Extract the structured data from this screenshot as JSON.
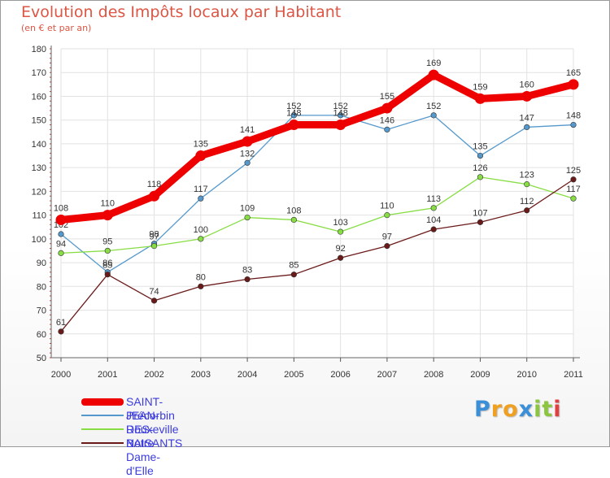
{
  "title": "Evolution des Impôts locaux par Habitant",
  "subtitle": "(en € et par an)",
  "brand": "Proxiti",
  "brand_letters": [
    {
      "ch": "P",
      "color": "#3a8fd8"
    },
    {
      "ch": "r",
      "color": "#f0a020"
    },
    {
      "ch": "o",
      "color": "#f0a020"
    },
    {
      "ch": "x",
      "color": "#3a8fd8"
    },
    {
      "ch": "i",
      "color": "#8cc63f"
    },
    {
      "ch": "t",
      "color": "#8cc63f"
    },
    {
      "ch": "i",
      "color": "#e04040"
    }
  ],
  "chart_data": {
    "type": "line",
    "title": "Evolution des Impôts locaux par Habitant",
    "subtitle": "(en € et par an)",
    "xlabel": "",
    "ylabel": "",
    "categories": [
      "2000",
      "2001",
      "2002",
      "2003",
      "2004",
      "2005",
      "2006",
      "2007",
      "2008",
      "2009",
      "2010",
      "2011"
    ],
    "ylim": [
      50,
      180
    ],
    "yticks": [
      50,
      60,
      70,
      80,
      90,
      100,
      110,
      120,
      130,
      140,
      150,
      160,
      170,
      180
    ],
    "grid": true,
    "legend_position": "bottom-left",
    "series": [
      {
        "name": "SAINT-JEAN-DES-BAISANTS",
        "color": "#ee0000",
        "emphasis": true,
        "values": [
          108,
          110,
          118,
          135,
          141,
          148,
          148,
          155,
          169,
          159,
          160,
          165
        ]
      },
      {
        "name": "Précorbin",
        "color": "#5599cc",
        "emphasis": false,
        "values": [
          102,
          86,
          98,
          117,
          132,
          152,
          152,
          146,
          152,
          135,
          147,
          148
        ]
      },
      {
        "name": "Rouxeville",
        "color": "#88dd44",
        "emphasis": false,
        "values": [
          94,
          95,
          97,
          100,
          109,
          108,
          103,
          110,
          113,
          126,
          123,
          117
        ]
      },
      {
        "name": "Notre-Dame-d'Elle",
        "color": "#6b1a1a",
        "emphasis": false,
        "values": [
          61,
          85,
          74,
          80,
          83,
          85,
          92,
          97,
          104,
          107,
          112,
          125
        ]
      }
    ]
  }
}
